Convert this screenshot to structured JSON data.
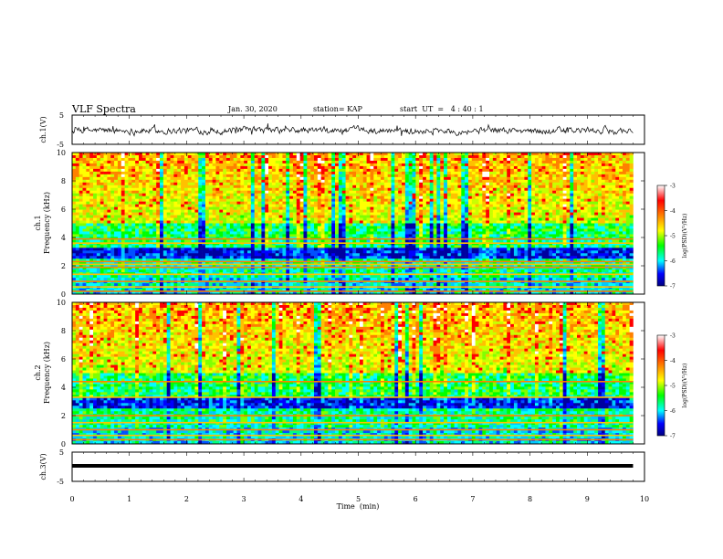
{
  "header": {
    "title": "VLF Spectra",
    "date": "Jan. 30, 2020",
    "station": "station= KAP",
    "start_ut": "start  UT  =   4 : 40 : 1"
  },
  "chart_data": [
    {
      "type": "line",
      "panel": "ch1-waveform",
      "ylabel": "ch.1(V)",
      "ylim": [
        -5,
        5
      ],
      "yticks": [
        "5",
        "-5"
      ],
      "xlim": [
        0,
        10
      ],
      "series": [
        {
          "values_description_trace_range": [
            -1.5,
            1.5
          ]
        }
      ],
      "color": "#000000"
    },
    {
      "type": "heatmap",
      "panel": "ch1-spectrogram",
      "ylabel": "ch.1\nFrequency (kHz)",
      "ylim": [
        0,
        10
      ],
      "yticks": [
        "0",
        "2",
        "4",
        "6",
        "8",
        "10"
      ],
      "xlim": [
        0,
        10
      ],
      "data_extent_min": 9.8,
      "colorbar": {
        "label": "log(PSD)(V²/Hz)",
        "range": [
          -7,
          -3
        ],
        "ticks": [
          "-3",
          "-4",
          "-5",
          "-6",
          "-7"
        ]
      },
      "hum_lines_khz": [
        0.2,
        0.5,
        0.9,
        1.4,
        1.9,
        2.1,
        2.3,
        3.6,
        3.9
      ]
    },
    {
      "type": "heatmap",
      "panel": "ch2-spectrogram",
      "ylabel": "ch.2\nFrequency (kHz)",
      "ylim": [
        0,
        10
      ],
      "yticks": [
        "0",
        "2",
        "4",
        "6",
        "8",
        "10"
      ],
      "xlim": [
        0,
        10
      ],
      "data_extent_min": 9.8,
      "colorbar": {
        "label": "log(PSD)(V²/Hz)",
        "range": [
          -7,
          -3
        ],
        "ticks": [
          "-3",
          "-4",
          "-5",
          "-6",
          "-7"
        ]
      },
      "hum_lines_khz": [
        0.3,
        0.6,
        1.0,
        1.5,
        2.0,
        3.3,
        4.4
      ]
    },
    {
      "type": "line",
      "panel": "ch3-waveform",
      "ylabel": "ch.3(V)",
      "ylim": [
        -5,
        5
      ],
      "yticks": [
        "5",
        "-5"
      ],
      "xlim": [
        0,
        10
      ],
      "series": [
        {
          "values_description_trace_level": [
            0.0,
            0.0
          ]
        }
      ],
      "color": "#000000"
    }
  ],
  "xaxis": {
    "label": "Time  (min)",
    "ticks": [
      "0",
      "1",
      "2",
      "3",
      "4",
      "5",
      "6",
      "7",
      "8",
      "9",
      "10"
    ]
  },
  "colors": {
    "trace": "#000000",
    "colormap": [
      "#0000c8",
      "#0000ff",
      "#00ffff",
      "#00ff00",
      "#ffff00",
      "#ff8000",
      "#ff0000",
      "#ffffff"
    ]
  }
}
